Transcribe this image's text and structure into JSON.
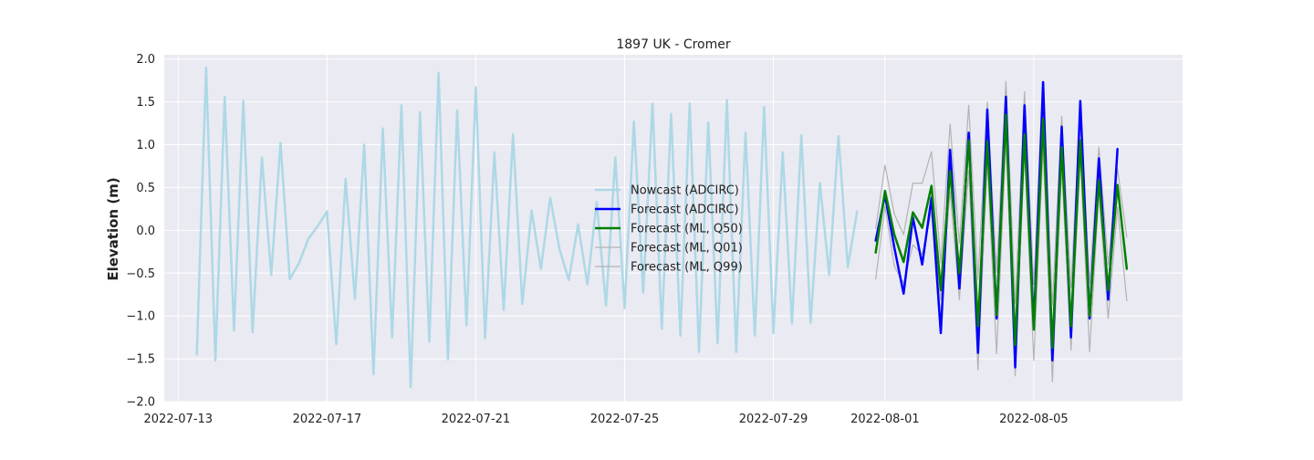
{
  "chart_data": {
    "type": "line",
    "title": "1897 UK - Cromer",
    "xlabel": "",
    "ylabel": "Elevation (m)",
    "x_type": "date",
    "xlim": [
      "2022-07-12T15:00",
      "2022-08-09T00:00"
    ],
    "ylim": [
      -2.0,
      2.05
    ],
    "yticks": [
      -2.0,
      -1.5,
      -1.0,
      -0.5,
      0.0,
      0.5,
      1.0,
      1.5,
      2.0
    ],
    "ytick_labels": [
      "−2.0",
      "−1.5",
      "−1.0",
      "−0.5",
      "0.0",
      "0.5",
      "1.0",
      "1.5",
      "2.0"
    ],
    "xticks": [
      "2022-07-13",
      "2022-07-17",
      "2022-07-21",
      "2022-07-25",
      "2022-07-29",
      "2022-08-01",
      "2022-08-05"
    ],
    "xtick_labels": [
      "2022-07-13",
      "2022-07-17",
      "2022-07-21",
      "2022-07-25",
      "2022-07-29",
      "2022-08-01",
      "2022-08-05"
    ],
    "grid": true,
    "legend_position": "center",
    "colors": {
      "background": "#eaeaf2",
      "grid": "#ffffff",
      "nowcast": "#add8e6",
      "forecast_adcirc": "#0000ff",
      "forecast_ml_q50": "#008000",
      "quantiles": "#b0b0b0"
    },
    "series": [
      {
        "name": "Nowcast (ADCIRC)",
        "color": "#add8e6",
        "points": [
          [
            "2022-07-13T12:00",
            -1.45
          ],
          [
            "2022-07-13T18:00",
            1.9
          ],
          [
            "2022-07-14T00:00",
            -1.52
          ],
          [
            "2022-07-14T06:00",
            1.56
          ],
          [
            "2022-07-14T12:00",
            -1.17
          ],
          [
            "2022-07-14T18:00",
            1.51
          ],
          [
            "2022-07-15T00:00",
            -1.19
          ],
          [
            "2022-07-15T06:00",
            0.85
          ],
          [
            "2022-07-15T12:00",
            -0.52
          ],
          [
            "2022-07-15T18:00",
            1.02
          ],
          [
            "2022-07-16T00:00",
            -0.57
          ],
          [
            "2022-07-16T06:00",
            -0.38
          ],
          [
            "2022-07-16T12:00",
            -0.1
          ],
          [
            "2022-07-16T18:00",
            0.05
          ],
          [
            "2022-07-17T00:00",
            0.22
          ],
          [
            "2022-07-17T06:00",
            -1.33
          ],
          [
            "2022-07-17T12:00",
            0.6
          ],
          [
            "2022-07-17T18:00",
            -0.8
          ],
          [
            "2022-07-18T00:00",
            1.0
          ],
          [
            "2022-07-18T06:00",
            -1.68
          ],
          [
            "2022-07-18T12:00",
            1.19
          ],
          [
            "2022-07-18T18:00",
            -1.25
          ],
          [
            "2022-07-19T00:00",
            1.46
          ],
          [
            "2022-07-19T06:00",
            -1.83
          ],
          [
            "2022-07-19T12:00",
            1.38
          ],
          [
            "2022-07-19T18:00",
            -1.3
          ],
          [
            "2022-07-20T00:00",
            1.84
          ],
          [
            "2022-07-20T06:00",
            -1.51
          ],
          [
            "2022-07-20T12:00",
            1.4
          ],
          [
            "2022-07-20T18:00",
            -1.11
          ],
          [
            "2022-07-21T00:00",
            1.67
          ],
          [
            "2022-07-21T06:00",
            -1.26
          ],
          [
            "2022-07-21T12:00",
            0.91
          ],
          [
            "2022-07-21T18:00",
            -0.93
          ],
          [
            "2022-07-22T00:00",
            1.12
          ],
          [
            "2022-07-22T06:00",
            -0.86
          ],
          [
            "2022-07-22T12:00",
            0.23
          ],
          [
            "2022-07-22T18:00",
            -0.45
          ],
          [
            "2022-07-23T00:00",
            0.38
          ],
          [
            "2022-07-23T06:00",
            -0.22
          ],
          [
            "2022-07-23T12:00",
            -0.58
          ],
          [
            "2022-07-23T18:00",
            0.07
          ],
          [
            "2022-07-24T00:00",
            -0.63
          ],
          [
            "2022-07-24T06:00",
            0.33
          ],
          [
            "2022-07-24T12:00",
            -0.88
          ],
          [
            "2022-07-24T18:00",
            0.85
          ],
          [
            "2022-07-25T00:00",
            -0.91
          ],
          [
            "2022-07-25T06:00",
            1.27
          ],
          [
            "2022-07-25T12:00",
            -0.73
          ],
          [
            "2022-07-25T18:00",
            1.48
          ],
          [
            "2022-07-26T00:00",
            -1.15
          ],
          [
            "2022-07-26T06:00",
            1.36
          ],
          [
            "2022-07-26T12:00",
            -1.23
          ],
          [
            "2022-07-26T18:00",
            1.48
          ],
          [
            "2022-07-27T00:00",
            -1.42
          ],
          [
            "2022-07-27T06:00",
            1.26
          ],
          [
            "2022-07-27T12:00",
            -1.32
          ],
          [
            "2022-07-27T18:00",
            1.52
          ],
          [
            "2022-07-28T00:00",
            -1.42
          ],
          [
            "2022-07-28T06:00",
            1.14
          ],
          [
            "2022-07-28T12:00",
            -1.23
          ],
          [
            "2022-07-28T18:00",
            1.44
          ],
          [
            "2022-07-29T00:00",
            -1.2
          ],
          [
            "2022-07-29T06:00",
            0.91
          ],
          [
            "2022-07-29T12:00",
            -1.09
          ],
          [
            "2022-07-29T18:00",
            1.11
          ],
          [
            "2022-07-30T00:00",
            -1.08
          ],
          [
            "2022-07-30T06:00",
            0.55
          ],
          [
            "2022-07-30T12:00",
            -0.52
          ],
          [
            "2022-07-30T18:00",
            1.1
          ],
          [
            "2022-07-31T00:00",
            -0.43
          ],
          [
            "2022-07-31T06:00",
            0.22
          ]
        ]
      },
      {
        "name": "Forecast (ADCIRC)",
        "color": "#0000ff",
        "points": [
          [
            "2022-07-31T18:00",
            -0.12
          ],
          [
            "2022-08-01T00:00",
            0.41
          ],
          [
            "2022-08-01T06:00",
            -0.2
          ],
          [
            "2022-08-01T12:00",
            -0.74
          ],
          [
            "2022-08-01T18:00",
            0.15
          ],
          [
            "2022-08-02T00:00",
            -0.4
          ],
          [
            "2022-08-02T06:00",
            0.38
          ],
          [
            "2022-08-02T12:00",
            -1.2
          ],
          [
            "2022-08-02T18:00",
            0.94
          ],
          [
            "2022-08-03T00:00",
            -0.68
          ],
          [
            "2022-08-03T06:00",
            1.14
          ],
          [
            "2022-08-03T12:00",
            -1.43
          ],
          [
            "2022-08-03T18:00",
            1.41
          ],
          [
            "2022-08-04T00:00",
            -1.03
          ],
          [
            "2022-08-04T06:00",
            1.56
          ],
          [
            "2022-08-04T12:00",
            -1.6
          ],
          [
            "2022-08-04T18:00",
            1.46
          ],
          [
            "2022-08-05T00:00",
            -1.13
          ],
          [
            "2022-08-05T06:00",
            1.73
          ],
          [
            "2022-08-05T12:00",
            -1.52
          ],
          [
            "2022-08-05T18:00",
            1.21
          ],
          [
            "2022-08-06T00:00",
            -1.25
          ],
          [
            "2022-08-06T06:00",
            1.51
          ],
          [
            "2022-08-06T12:00",
            -1.03
          ],
          [
            "2022-08-06T18:00",
            0.84
          ],
          [
            "2022-08-07T00:00",
            -0.81
          ],
          [
            "2022-08-07T06:00",
            0.95
          ]
        ]
      },
      {
        "name": "Forecast (ML, Q50)",
        "color": "#008000",
        "points": [
          [
            "2022-07-31T18:00",
            -0.26
          ],
          [
            "2022-08-01T00:00",
            0.46
          ],
          [
            "2022-08-01T06:00",
            -0.05
          ],
          [
            "2022-08-01T12:00",
            -0.37
          ],
          [
            "2022-08-01T18:00",
            0.21
          ],
          [
            "2022-08-02T00:00",
            0.03
          ],
          [
            "2022-08-02T06:00",
            0.52
          ],
          [
            "2022-08-02T12:00",
            -0.7
          ],
          [
            "2022-08-02T18:00",
            0.69
          ],
          [
            "2022-08-03T00:00",
            -0.5
          ],
          [
            "2022-08-03T06:00",
            1.05
          ],
          [
            "2022-08-03T12:00",
            -1.12
          ],
          [
            "2022-08-03T18:00",
            1.04
          ],
          [
            "2022-08-04T00:00",
            -0.99
          ],
          [
            "2022-08-04T06:00",
            1.35
          ],
          [
            "2022-08-04T12:00",
            -1.34
          ],
          [
            "2022-08-04T18:00",
            1.12
          ],
          [
            "2022-08-05T00:00",
            -1.16
          ],
          [
            "2022-08-05T06:00",
            1.3
          ],
          [
            "2022-08-05T12:00",
            -1.37
          ],
          [
            "2022-08-05T18:00",
            0.97
          ],
          [
            "2022-08-06T00:00",
            -1.12
          ],
          [
            "2022-08-06T06:00",
            1.05
          ],
          [
            "2022-08-06T12:00",
            -1.0
          ],
          [
            "2022-08-06T18:00",
            0.58
          ],
          [
            "2022-08-07T00:00",
            -0.7
          ],
          [
            "2022-08-07T06:00",
            0.53
          ],
          [
            "2022-08-07T12:00",
            -0.45
          ]
        ]
      },
      {
        "name": "Forecast (ML, Q01)",
        "color": "#b0b0b0",
        "points": [
          [
            "2022-07-31T18:00",
            -0.57
          ],
          [
            "2022-08-01T00:00",
            0.28
          ],
          [
            "2022-08-01T06:00",
            -0.42
          ],
          [
            "2022-08-01T12:00",
            -0.62
          ],
          [
            "2022-08-01T18:00",
            -0.17
          ],
          [
            "2022-08-02T00:00",
            -0.28
          ],
          [
            "2022-08-02T06:00",
            0.22
          ],
          [
            "2022-08-02T12:00",
            -0.81
          ],
          [
            "2022-08-02T18:00",
            0.45
          ],
          [
            "2022-08-03T00:00",
            -0.81
          ],
          [
            "2022-08-03T06:00",
            0.7
          ],
          [
            "2022-08-03T12:00",
            -1.63
          ],
          [
            "2022-08-03T18:00",
            0.8
          ],
          [
            "2022-08-04T00:00",
            -1.44
          ],
          [
            "2022-08-04T06:00",
            1.04
          ],
          [
            "2022-08-04T12:00",
            -1.7
          ],
          [
            "2022-08-04T18:00",
            0.94
          ],
          [
            "2022-08-05T00:00",
            -1.52
          ],
          [
            "2022-08-05T06:00",
            0.98
          ],
          [
            "2022-08-05T12:00",
            -1.77
          ],
          [
            "2022-08-05T18:00",
            0.73
          ],
          [
            "2022-08-06T00:00",
            -1.4
          ],
          [
            "2022-08-06T06:00",
            0.87
          ],
          [
            "2022-08-06T12:00",
            -1.42
          ],
          [
            "2022-08-06T18:00",
            0.44
          ],
          [
            "2022-08-07T00:00",
            -1.03
          ],
          [
            "2022-08-07T06:00",
            0.27
          ],
          [
            "2022-08-07T12:00",
            -0.82
          ]
        ]
      },
      {
        "name": "Forecast (ML, Q99)",
        "color": "#b0b0b0",
        "points": [
          [
            "2022-07-31T18:00",
            0.02
          ],
          [
            "2022-08-01T00:00",
            0.76
          ],
          [
            "2022-08-01T06:00",
            0.19
          ],
          [
            "2022-08-01T12:00",
            -0.05
          ],
          [
            "2022-08-01T18:00",
            0.55
          ],
          [
            "2022-08-02T00:00",
            0.55
          ],
          [
            "2022-08-02T06:00",
            0.92
          ],
          [
            "2022-08-02T12:00",
            -0.38
          ],
          [
            "2022-08-02T18:00",
            1.24
          ],
          [
            "2022-08-03T00:00",
            -0.15
          ],
          [
            "2022-08-03T06:00",
            1.46
          ],
          [
            "2022-08-03T12:00",
            -0.57
          ],
          [
            "2022-08-03T18:00",
            1.5
          ],
          [
            "2022-08-04T00:00",
            -0.49
          ],
          [
            "2022-08-04T06:00",
            1.74
          ],
          [
            "2022-08-04T12:00",
            -0.85
          ],
          [
            "2022-08-04T18:00",
            1.62
          ],
          [
            "2022-08-05T00:00",
            -0.63
          ],
          [
            "2022-08-05T06:00",
            1.7
          ],
          [
            "2022-08-05T12:00",
            -0.87
          ],
          [
            "2022-08-05T18:00",
            1.33
          ],
          [
            "2022-08-06T00:00",
            -0.67
          ],
          [
            "2022-08-06T06:00",
            1.47
          ],
          [
            "2022-08-06T12:00",
            -0.62
          ],
          [
            "2022-08-06T18:00",
            0.97
          ],
          [
            "2022-08-07T00:00",
            -0.4
          ],
          [
            "2022-08-07T06:00",
            0.72
          ],
          [
            "2022-08-07T12:00",
            -0.08
          ]
        ]
      }
    ]
  }
}
